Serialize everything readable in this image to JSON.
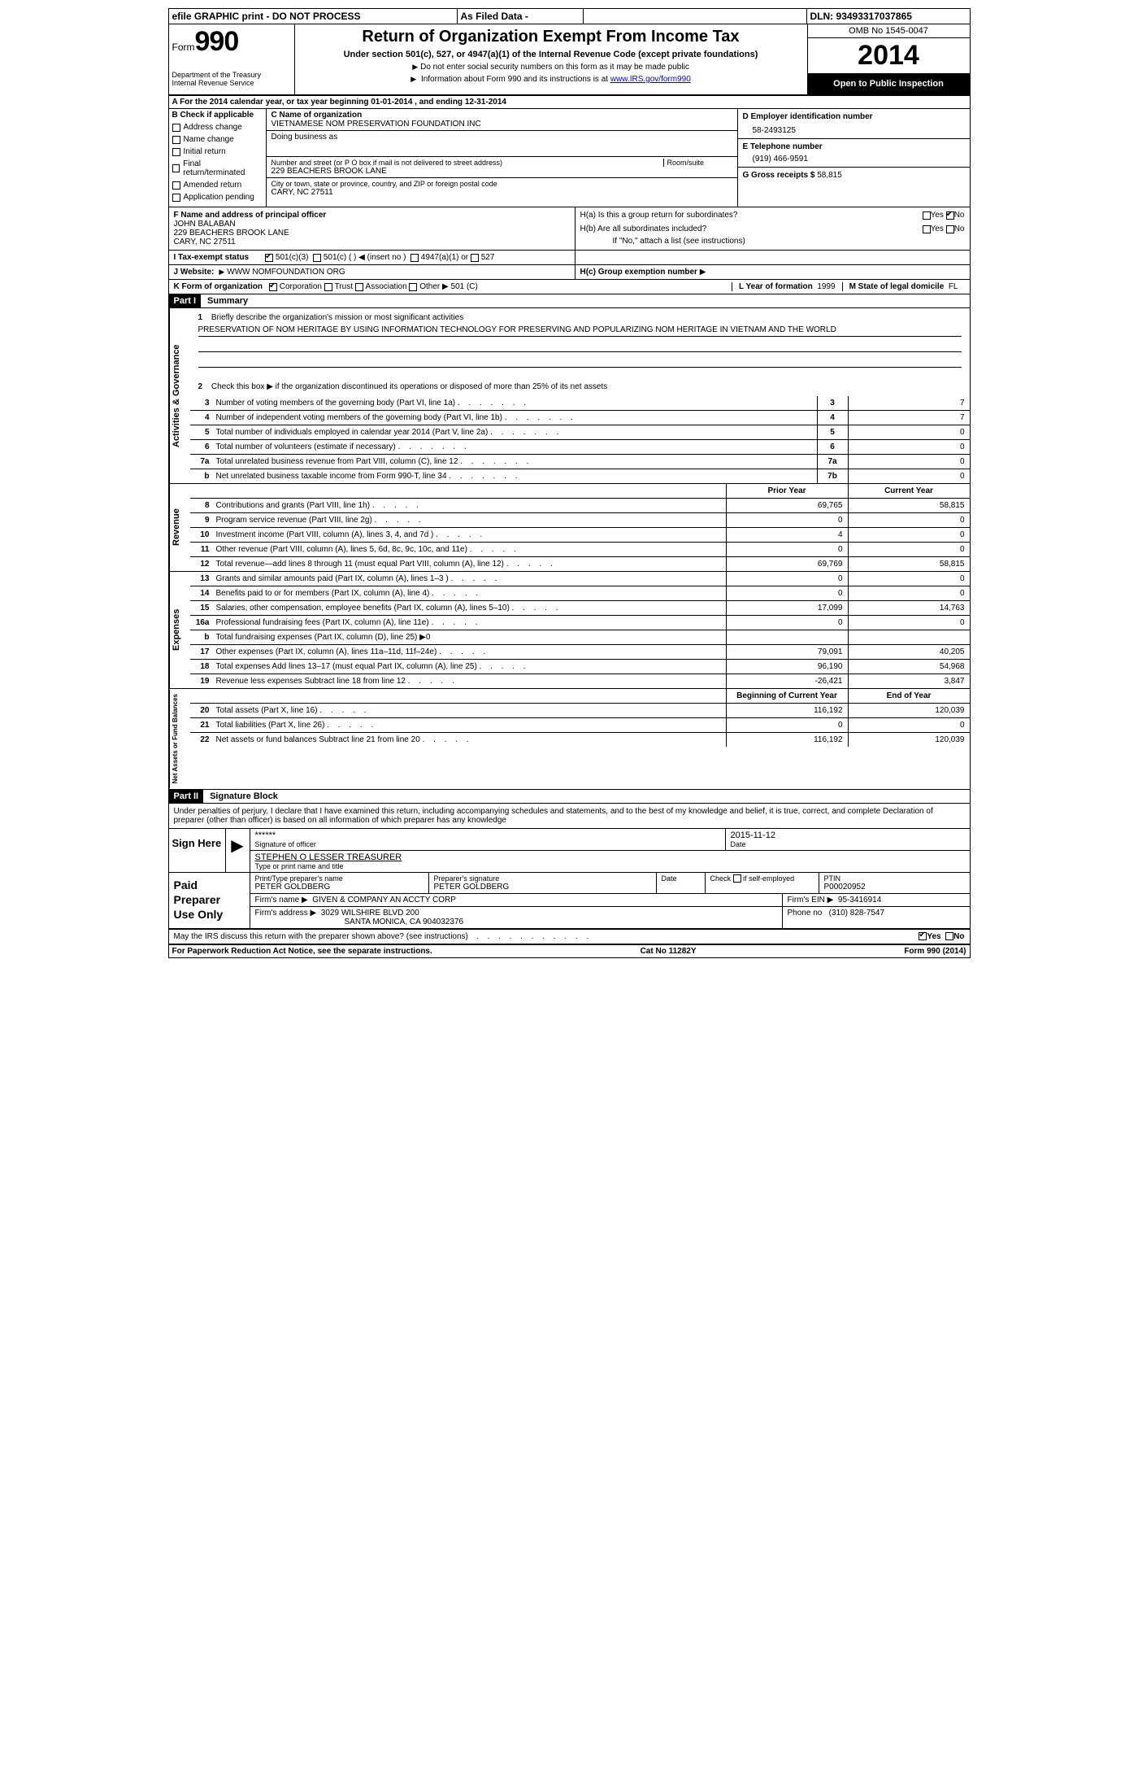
{
  "topbar": {
    "efile": "efile GRAPHIC print - DO NOT PROCESS",
    "asFiled": "As Filed Data -",
    "dln_label": "DLN:",
    "dln": "93493317037865"
  },
  "header": {
    "form_label": "Form",
    "form_number": "990",
    "dept": "Department of the Treasury",
    "irs": "Internal Revenue Service",
    "title": "Return of Organization Exempt From Income Tax",
    "subtitle": "Under section 501(c), 527, or 4947(a)(1) of the Internal Revenue Code (except private foundations)",
    "note1": "Do not enter social security numbers on this form as it may be made public",
    "note2_pre": "Information about Form 990 and its instructions is at ",
    "note2_link": "www.IRS.gov/form990",
    "omb": "OMB No 1545-0047",
    "year": "2014",
    "open": "Open to Public Inspection"
  },
  "sectionA": {
    "line": "A  For the 2014 calendar year, or tax year beginning 01-01-2014  , and ending 12-31-2014"
  },
  "sectionB": {
    "label": "B  Check if applicable",
    "items": [
      "Address change",
      "Name change",
      "Initial return",
      "Final return/terminated",
      "Amended return",
      "Application pending"
    ]
  },
  "sectionC": {
    "name_label": "C Name of organization",
    "name": "VIETNAMESE NOM PRESERVATION FOUNDATION INC",
    "dba_label": "Doing business as",
    "dba": "",
    "street_label": "Number and street (or P O  box if mail is not delivered to street address)",
    "room_label": "Room/suite",
    "street": "229 BEACHERS BROOK LANE",
    "city_label": "City or town, state or province, country, and ZIP or foreign postal code",
    "city": "CARY, NC  27511"
  },
  "sectionD": {
    "label": "D Employer identification number",
    "value": "58-2493125"
  },
  "sectionE": {
    "label": "E Telephone number",
    "value": "(919) 466-9591"
  },
  "sectionG": {
    "label": "G Gross receipts $",
    "value": "58,815"
  },
  "sectionF": {
    "label": "F   Name and address of principal officer",
    "name": "JOHN BALABAN",
    "addr1": "229 BEACHERS BROOK LANE",
    "addr2": "CARY, NC  27511"
  },
  "sectionH": {
    "ha": "H(a)  Is this a group return for subordinates?",
    "hb": "H(b)  Are all subordinates included?",
    "hb_note": "If \"No,\" attach a list  (see instructions)",
    "hc": "H(c)   Group exemption number",
    "yes": "Yes",
    "no": "No"
  },
  "sectionI": {
    "label": "I   Tax-exempt status",
    "opt1": "501(c)(3)",
    "opt2": "501(c) (  )",
    "insert": "(insert no )",
    "opt3": "4947(a)(1) or",
    "opt4": "527"
  },
  "sectionJ": {
    "label": "J   Website:",
    "value": "WWW NOMFOUNDATION ORG"
  },
  "sectionK": {
    "label": "K Form of organization",
    "corp": "Corporation",
    "trust": "Trust",
    "assoc": "Association",
    "other": "Other",
    "other_val": "501 (C)"
  },
  "sectionL": {
    "label": "L Year of formation",
    "value": "1999"
  },
  "sectionM": {
    "label": "M State of legal domicile",
    "value": "FL"
  },
  "part1": {
    "header": "Part I",
    "title": "Summary"
  },
  "mission": {
    "num": "1",
    "prompt": "Briefly describe the organization's mission or most significant activities",
    "text": "PRESERVATION OF NOM HERITAGE BY USING INFORMATION TECHNOLOGY FOR PRESERVING AND POPULARIZING NOM HERITAGE IN VIETNAM AND THE WORLD"
  },
  "line2": {
    "num": "2",
    "text": "Check this box ▶  if the organization discontinued its operations or disposed of more than 25% of its net assets"
  },
  "govLines": [
    {
      "num": "3",
      "desc": "Number of voting members of the governing body (Part VI, line 1a)",
      "cell": "3",
      "val": "7"
    },
    {
      "num": "4",
      "desc": "Number of independent voting members of the governing body (Part VI, line 1b)",
      "cell": "4",
      "val": "7"
    },
    {
      "num": "5",
      "desc": "Total number of individuals employed in calendar year 2014 (Part V, line 2a)",
      "cell": "5",
      "val": "0"
    },
    {
      "num": "6",
      "desc": "Total number of volunteers (estimate if necessary)",
      "cell": "6",
      "val": "0"
    },
    {
      "num": "7a",
      "desc": "Total unrelated business revenue from Part VIII, column (C), line 12",
      "cell": "7a",
      "val": "0"
    },
    {
      "num": "b",
      "desc": "Net unrelated business taxable income from Form 990-T, line 34",
      "cell": "7b",
      "val": "0"
    }
  ],
  "revHeader": {
    "prior": "Prior Year",
    "current": "Current Year"
  },
  "revLines": [
    {
      "num": "8",
      "desc": "Contributions and grants (Part VIII, line 1h)",
      "prior": "69,765",
      "curr": "58,815"
    },
    {
      "num": "9",
      "desc": "Program service revenue (Part VIII, line 2g)",
      "prior": "0",
      "curr": "0"
    },
    {
      "num": "10",
      "desc": "Investment income (Part VIII, column (A), lines 3, 4, and 7d )",
      "prior": "4",
      "curr": "0"
    },
    {
      "num": "11",
      "desc": "Other revenue (Part VIII, column (A), lines 5, 6d, 8c, 9c, 10c, and 11e)",
      "prior": "0",
      "curr": "0"
    },
    {
      "num": "12",
      "desc": "Total revenue—add lines 8 through 11 (must equal Part VIII, column (A), line 12)",
      "prior": "69,769",
      "curr": "58,815"
    }
  ],
  "expLines": [
    {
      "num": "13",
      "desc": "Grants and similar amounts paid (Part IX, column (A), lines 1–3 )",
      "prior": "0",
      "curr": "0"
    },
    {
      "num": "14",
      "desc": "Benefits paid to or for members (Part IX, column (A), line 4)",
      "prior": "0",
      "curr": "0"
    },
    {
      "num": "15",
      "desc": "Salaries, other compensation, employee benefits (Part IX, column (A), lines 5–10)",
      "prior": "17,099",
      "curr": "14,763"
    },
    {
      "num": "16a",
      "desc": "Professional fundraising fees (Part IX, column (A), line 11e)",
      "prior": "0",
      "curr": "0"
    },
    {
      "num": "b",
      "desc": "Total fundraising expenses (Part IX, column (D), line 25) ▶0",
      "prior": "",
      "curr": ""
    },
    {
      "num": "17",
      "desc": "Other expenses (Part IX, column (A), lines 11a–11d, 11f–24e)",
      "prior": "79,091",
      "curr": "40,205"
    },
    {
      "num": "18",
      "desc": "Total expenses  Add lines 13–17 (must equal Part IX, column (A), line 25)",
      "prior": "96,190",
      "curr": "54,968"
    },
    {
      "num": "19",
      "desc": "Revenue less expenses  Subtract line 18 from line 12",
      "prior": "-26,421",
      "curr": "3,847"
    }
  ],
  "netHeader": {
    "begin": "Beginning of Current Year",
    "end": "End of Year"
  },
  "netLines": [
    {
      "num": "20",
      "desc": "Total assets (Part X, line 16)",
      "prior": "116,192",
      "curr": "120,039"
    },
    {
      "num": "21",
      "desc": "Total liabilities (Part X, line 26)",
      "prior": "0",
      "curr": "0"
    },
    {
      "num": "22",
      "desc": "Net assets or fund balances  Subtract line 21 from line 20",
      "prior": "116,192",
      "curr": "120,039"
    }
  ],
  "vtabs": {
    "gov": "Activities & Governance",
    "rev": "Revenue",
    "exp": "Expenses",
    "net": "Net Assets or Fund Balances"
  },
  "part2": {
    "header": "Part II",
    "title": "Signature Block"
  },
  "perjury": "Under penalties of perjury, I declare that I have examined this return, including accompanying schedules and statements, and to the best of my knowledge and belief, it is true, correct, and complete  Declaration of preparer (other than officer) is based on all information of which preparer has any knowledge",
  "sign": {
    "label": "Sign Here",
    "sig_stars": "******",
    "sig_of": "Signature of officer",
    "date": "2015-11-12",
    "date_label": "Date",
    "name": "STEPHEN O LESSER TREASURER",
    "name_label": "Type or print name and title"
  },
  "prep": {
    "label": "Paid Preparer Use Only",
    "pname_label": "Print/Type preparer's name",
    "pname": "PETER GOLDBERG",
    "psig_label": "Preparer's signature",
    "psig": "PETER GOLDBERG",
    "pdate_label": "Date",
    "check_label": "Check",
    "self_emp": "if self-employed",
    "ptin_label": "PTIN",
    "ptin": "P00020952",
    "firm_name_label": "Firm's name   ",
    "firm_name": "GIVEN & COMPANY AN ACCTY CORP",
    "firm_ein_label": "Firm's EIN",
    "firm_ein": "95-3416914",
    "firm_addr_label": "Firm's address",
    "firm_addr1": "3029 WILSHIRE BLVD 200",
    "firm_addr2": "SANTA MONICA, CA  904032376",
    "phone_label": "Phone no",
    "phone": "(310) 828-7547"
  },
  "discuss": {
    "text": "May the IRS discuss this return with the preparer shown above? (see instructions)",
    "yes": "Yes",
    "no": "No"
  },
  "footer": {
    "left": "For Paperwork Reduction Act Notice, see the separate instructions.",
    "mid": "Cat No 11282Y",
    "right": "Form 990 (2014)"
  }
}
